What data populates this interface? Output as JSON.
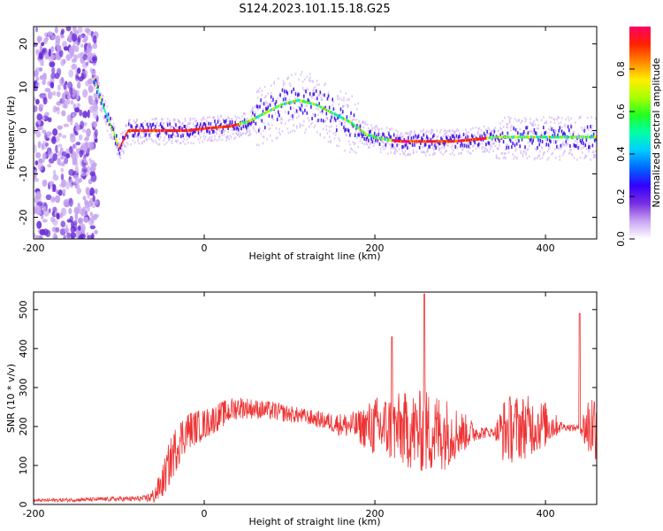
{
  "title": "S124.2023.101.15.18.G25",
  "chart_data": [
    {
      "type": "heatmap",
      "name": "spectrogram",
      "xlabel": "Height of straight line (km)",
      "ylabel": "Frequency (Hz)",
      "xlim": [
        -200,
        460
      ],
      "ylim": [
        -25,
        24
      ],
      "xticks": [
        -200,
        0,
        200,
        400
      ],
      "yticks": [
        -20,
        -10,
        0,
        10,
        20
      ],
      "colorbar": {
        "label": "Normalized spectral amplitude",
        "range": [
          0,
          1
        ],
        "ticks": [
          0.0,
          0.2,
          0.4,
          0.6,
          0.8
        ],
        "colors": [
          "#ffffff",
          "#c9a6f2",
          "#7a2ee0",
          "#3300ff",
          "#0066ff",
          "#00ccff",
          "#00ffaa",
          "#22ff22",
          "#aaff00",
          "#ffee00",
          "#ff8800",
          "#ff2200",
          "#ff0066"
        ]
      },
      "ridge": {
        "x": [
          -130,
          -120,
          -110,
          -100,
          -90,
          -60,
          -20,
          0,
          30,
          50,
          70,
          90,
          110,
          130,
          150,
          170,
          190,
          210,
          230,
          260,
          290,
          320,
          340,
          360,
          400,
          440,
          460
        ],
        "freq": [
          12,
          6,
          1,
          -4,
          0,
          0,
          0,
          0.5,
          1,
          2,
          4,
          6,
          7,
          6,
          4,
          2,
          -1,
          -2,
          -2.5,
          -2.5,
          -2.5,
          -2,
          -1.5,
          -1.5,
          -1.5,
          -1.5,
          -1.5
        ]
      }
    },
    {
      "type": "line",
      "name": "snr",
      "xlabel": "Height of straight line (km)",
      "ylabel": "SNR (10 * v/v)",
      "xlim": [
        -200,
        460
      ],
      "ylim": [
        0,
        545
      ],
      "xticks": [
        -200,
        0,
        200,
        400
      ],
      "yticks": [
        0,
        100,
        200,
        300,
        400,
        500
      ],
      "color": "#ee3333",
      "envelope": {
        "x": [
          -200,
          -150,
          -100,
          -70,
          -60,
          -50,
          -40,
          -30,
          -20,
          0,
          20,
          40,
          60,
          80,
          100,
          120,
          140,
          160,
          180,
          200,
          220,
          240,
          260,
          280,
          300,
          320,
          340,
          350,
          360,
          380,
          400,
          420,
          440,
          450,
          460
        ],
        "mean": [
          10,
          12,
          14,
          15,
          20,
          50,
          110,
          160,
          190,
          205,
          230,
          250,
          245,
          240,
          232,
          225,
          215,
          205,
          200,
          198,
          195,
          190,
          185,
          185,
          185,
          185,
          185,
          190,
          195,
          200,
          205,
          200,
          195,
          200,
          210
        ],
        "spread": [
          4,
          5,
          6,
          8,
          20,
          40,
          60,
          60,
          50,
          40,
          35,
          30,
          25,
          25,
          22,
          20,
          22,
          30,
          40,
          80,
          90,
          100,
          110,
          100,
          60,
          20,
          10,
          80,
          90,
          80,
          60,
          10,
          8,
          90,
          100
        ]
      },
      "peaks": [
        {
          "x": 258,
          "y": 540
        },
        {
          "x": 220,
          "y": 430
        },
        {
          "x": 440,
          "y": 490
        }
      ]
    }
  ]
}
